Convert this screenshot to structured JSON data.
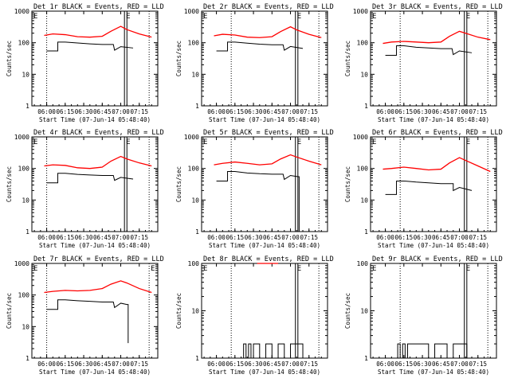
{
  "figure": {
    "start_time_label": "Start Time (07-Jun-14 05:48:40)",
    "ylabel": "Counts/sec",
    "legend_marker": "E",
    "colors": {
      "events": "#000000",
      "lld": "#ff0000",
      "axes": "#000000",
      "background": "#ffffff"
    }
  },
  "chart_data": [
    {
      "type": "line",
      "title": "Det 1r BLACK = Events, RED = LLD",
      "xlabel": "Start Time (07-Jun-14 05:48:40)",
      "ylabel": "Counts/sec",
      "yscale": "log",
      "ylim": [
        1,
        1000
      ],
      "yticks": [
        "1",
        "10",
        "100",
        "1000"
      ],
      "xlim": [
        "05:48",
        "07:30"
      ],
      "xticks": [
        "06:00",
        "06:15",
        "06:30",
        "06:45",
        "07:00",
        "07:15"
      ],
      "markers": {
        "dotted": [
          "06:00",
          "07:23"
        ],
        "solid": [
          "07:03",
          "07:05"
        ]
      },
      "series": [
        {
          "name": "LLD",
          "x": [
            "05:58",
            "06:05",
            "06:15",
            "06:25",
            "06:35",
            "06:45",
            "06:52",
            "07:00",
            "07:05",
            "07:15",
            "07:25"
          ],
          "values": [
            170,
            190,
            180,
            155,
            150,
            160,
            230,
            330,
            260,
            190,
            150
          ]
        },
        {
          "name": "Events",
          "x": [
            "06:00",
            "06:08",
            "06:09",
            "06:15",
            "06:25",
            "06:35",
            "06:45",
            "06:54",
            "06:55",
            "07:00",
            "07:10"
          ],
          "values": [
            55,
            55,
            105,
            105,
            98,
            92,
            88,
            88,
            58,
            75,
            68
          ]
        }
      ]
    },
    {
      "type": "line",
      "title": "Det 2r BLACK = Events, RED = LLD",
      "xlabel": "Start Time (07-Jun-14 05:48:40)",
      "ylabel": "Counts/sec",
      "yscale": "log",
      "ylim": [
        1,
        1000
      ],
      "yticks": [
        "1",
        "10",
        "100",
        "1000"
      ],
      "xlim": [
        "05:48",
        "07:30"
      ],
      "xticks": [
        "06:00",
        "06:15",
        "06:30",
        "06:45",
        "07:00",
        "07:15"
      ],
      "markers": {
        "dotted": [
          "06:12",
          "07:23"
        ],
        "solid": [
          "07:04",
          "07:06"
        ]
      },
      "series": [
        {
          "name": "LLD",
          "x": [
            "05:58",
            "06:05",
            "06:15",
            "06:25",
            "06:35",
            "06:45",
            "06:52",
            "07:00",
            "07:05",
            "07:15",
            "07:25"
          ],
          "values": [
            165,
            185,
            175,
            150,
            145,
            155,
            225,
            320,
            255,
            185,
            145
          ]
        },
        {
          "name": "Events",
          "x": [
            "06:00",
            "06:08",
            "06:09",
            "06:15",
            "06:25",
            "06:35",
            "06:45",
            "06:54",
            "06:55",
            "07:00",
            "07:10"
          ],
          "values": [
            55,
            55,
            105,
            105,
            97,
            90,
            86,
            86,
            58,
            76,
            66
          ]
        }
      ]
    },
    {
      "type": "line",
      "title": "Det 3r BLACK = Events, RED = LLD",
      "xlabel": "Start Time (07-Jun-14 05:48:40)",
      "ylabel": "Counts/sec",
      "yscale": "log",
      "ylim": [
        1,
        1000
      ],
      "yticks": [
        "1",
        "10",
        "100",
        "1000"
      ],
      "xlim": [
        "05:48",
        "07:30"
      ],
      "xticks": [
        "06:00",
        "06:15",
        "06:30",
        "06:45",
        "07:00",
        "07:15"
      ],
      "markers": {
        "dotted": [
          "06:12",
          "07:23"
        ],
        "solid": [
          "07:04",
          "07:06"
        ]
      },
      "series": [
        {
          "name": "LLD",
          "x": [
            "05:58",
            "06:05",
            "06:15",
            "06:25",
            "06:35",
            "06:45",
            "06:52",
            "07:00",
            "07:05",
            "07:15",
            "07:25"
          ],
          "values": [
            95,
            105,
            110,
            105,
            100,
            105,
            160,
            230,
            200,
            150,
            125
          ]
        },
        {
          "name": "Events",
          "x": [
            "06:00",
            "06:08",
            "06:09",
            "06:15",
            "06:25",
            "06:35",
            "06:45",
            "06:54",
            "06:55",
            "07:00",
            "07:10"
          ],
          "values": [
            40,
            40,
            80,
            80,
            72,
            68,
            65,
            65,
            42,
            55,
            48
          ]
        }
      ]
    },
    {
      "type": "line",
      "title": "Det 4r BLACK = Events, RED = LLD",
      "xlabel": "Start Time (07-Jun-14 05:48:40)",
      "ylabel": "Counts/sec",
      "yscale": "log",
      "ylim": [
        1,
        1000
      ],
      "yticks": [
        "1",
        "10",
        "100",
        "1000"
      ],
      "xlim": [
        "05:48",
        "07:30"
      ],
      "xticks": [
        "06:00",
        "06:15",
        "06:30",
        "06:45",
        "07:00",
        "07:15"
      ],
      "markers": {
        "dotted": [
          "06:00",
          "07:23"
        ],
        "solid": [
          "07:03",
          "07:05"
        ]
      },
      "series": [
        {
          "name": "LLD",
          "x": [
            "05:58",
            "06:05",
            "06:15",
            "06:25",
            "06:35",
            "06:45",
            "06:52",
            "07:00",
            "07:05",
            "07:15",
            "07:25"
          ],
          "values": [
            120,
            130,
            125,
            105,
            100,
            110,
            170,
            240,
            200,
            150,
            120
          ]
        },
        {
          "name": "Events",
          "x": [
            "06:00",
            "06:08",
            "06:09",
            "06:15",
            "06:25",
            "06:35",
            "06:45",
            "06:54",
            "06:55",
            "07:00",
            "07:10"
          ],
          "values": [
            35,
            35,
            70,
            70,
            65,
            62,
            60,
            60,
            42,
            52,
            46
          ]
        }
      ]
    },
    {
      "type": "line",
      "title": "Det 5r BLACK = Events, RED = LLD",
      "xlabel": "Start Time (07-Jun-14 05:48:40)",
      "ylabel": "Counts/sec",
      "yscale": "log",
      "ylim": [
        1,
        1000
      ],
      "yticks": [
        "1",
        "10",
        "100",
        "1000"
      ],
      "xlim": [
        "05:48",
        "07:30"
      ],
      "xticks": [
        "06:00",
        "06:15",
        "06:30",
        "06:45",
        "07:00",
        "07:15"
      ],
      "markers": {
        "dotted": [
          "06:12",
          "07:23"
        ],
        "solid": [
          "07:04",
          "07:06"
        ]
      },
      "series": [
        {
          "name": "LLD",
          "x": [
            "05:58",
            "06:05",
            "06:15",
            "06:25",
            "06:35",
            "06:45",
            "06:52",
            "07:00",
            "07:05",
            "07:15",
            "07:25"
          ],
          "values": [
            130,
            145,
            160,
            145,
            130,
            140,
            200,
            270,
            230,
            170,
            130
          ]
        },
        {
          "name": "Events",
          "x": [
            "06:00",
            "06:08",
            "06:09",
            "06:15",
            "06:25",
            "06:35",
            "06:45",
            "06:54",
            "06:55",
            "07:00",
            "07:06",
            "07:07"
          ],
          "values": [
            40,
            40,
            80,
            80,
            72,
            68,
            66,
            66,
            45,
            60,
            55,
            1
          ]
        }
      ]
    },
    {
      "type": "line",
      "title": "Det 6r BLACK = Events, RED = LLD",
      "xlabel": "Start Time (07-Jun-14 05:48:40)",
      "ylabel": "Counts/sec",
      "yscale": "log",
      "ylim": [
        1,
        1000
      ],
      "yticks": [
        "1",
        "10",
        "100",
        "1000"
      ],
      "xlim": [
        "05:48",
        "07:30"
      ],
      "xticks": [
        "06:00",
        "06:15",
        "06:30",
        "06:45",
        "07:00",
        "07:15"
      ],
      "markers": {
        "dotted": [
          "06:12",
          "07:23"
        ],
        "solid": [
          "07:04",
          "07:06"
        ]
      },
      "series": [
        {
          "name": "LLD",
          "x": [
            "05:58",
            "06:05",
            "06:15",
            "06:25",
            "06:35",
            "06:45",
            "06:52",
            "07:00",
            "07:05",
            "07:15",
            "07:25"
          ],
          "values": [
            95,
            100,
            110,
            100,
            90,
            95,
            150,
            220,
            180,
            120,
            80
          ]
        },
        {
          "name": "Events",
          "x": [
            "06:00",
            "06:08",
            "06:09",
            "06:15",
            "06:25",
            "06:35",
            "06:45",
            "06:54",
            "06:55",
            "07:00",
            "07:10"
          ],
          "values": [
            15,
            15,
            40,
            40,
            37,
            35,
            33,
            33,
            20,
            25,
            20
          ]
        }
      ]
    },
    {
      "type": "line",
      "title": "Det 7r BLACK = Events, RED = LLD",
      "xlabel": "Start Time (07-Jun-14 05:48:40)",
      "ylabel": "Counts/sec",
      "yscale": "log",
      "ylim": [
        1,
        1000
      ],
      "yticks": [
        "1",
        "10",
        "100",
        "1000"
      ],
      "xlim": [
        "05:48",
        "07:30"
      ],
      "xticks": [
        "06:00",
        "06:15",
        "06:30",
        "06:45",
        "07:00",
        "07:15"
      ],
      "markers": {
        "dotted": [
          "06:00",
          "07:23"
        ],
        "solid": []
      },
      "series": [
        {
          "name": "LLD",
          "x": [
            "05:58",
            "06:05",
            "06:15",
            "06:25",
            "06:35",
            "06:45",
            "06:52",
            "07:00",
            "07:05",
            "07:15",
            "07:25"
          ],
          "values": [
            120,
            130,
            140,
            135,
            140,
            160,
            220,
            280,
            240,
            160,
            120
          ]
        },
        {
          "name": "Events",
          "x": [
            "06:00",
            "06:08",
            "06:09",
            "06:15",
            "06:25",
            "06:35",
            "06:45",
            "06:54",
            "06:55",
            "07:00",
            "07:05",
            "07:06"
          ],
          "values": [
            35,
            35,
            70,
            70,
            66,
            63,
            60,
            60,
            40,
            55,
            50,
            3
          ]
        }
      ]
    },
    {
      "type": "line",
      "title": "Det 8r BLACK = Events, RED = LLD",
      "xlabel": "Start Time (07-Jun-14 05:48:40)",
      "ylabel": "Counts/sec",
      "yscale": "log",
      "ylim": [
        1,
        100
      ],
      "yticks": [
        "1",
        "10",
        "100"
      ],
      "xlim": [
        "05:48",
        "07:30"
      ],
      "xticks": [
        "06:00",
        "06:15",
        "06:30",
        "06:45",
        "07:00",
        "07:15"
      ],
      "markers": {
        "dotted": [
          "06:12",
          "07:23"
        ],
        "solid": [
          "07:04",
          "07:06"
        ]
      },
      "series": [
        {
          "name": "LLD",
          "x": [
            "06:33",
            "06:50"
          ],
          "values": [
            100,
            100
          ]
        },
        {
          "name": "Events",
          "x": [
            "06:00",
            "06:20",
            "06:22",
            "06:24",
            "06:26",
            "06:28",
            "06:30",
            "06:35",
            "06:40",
            "06:45",
            "06:50",
            "06:55",
            "07:00",
            "07:03",
            "07:06",
            "07:08",
            "07:10"
          ],
          "values": [
            1,
            1,
            2,
            1,
            2,
            1,
            2,
            1,
            2,
            1,
            2,
            1,
            2,
            2,
            2,
            2,
            1
          ]
        }
      ]
    },
    {
      "type": "line",
      "title": "Det 9r BLACK = Events, RED = LLD",
      "xlabel": "Start Time (07-Jun-14 05:48:40)",
      "ylabel": "Counts/sec",
      "yscale": "log",
      "ylim": [
        1,
        100
      ],
      "yticks": [
        "1",
        "10",
        "100"
      ],
      "xlim": [
        "05:48",
        "07:30"
      ],
      "xticks": [
        "06:00",
        "06:15",
        "06:30",
        "06:45",
        "07:00",
        "07:15"
      ],
      "markers": {
        "dotted": [
          "06:12",
          "07:23"
        ],
        "solid": [
          "07:04",
          "07:06"
        ]
      },
      "series": [
        {
          "name": "Events",
          "x": [
            "06:00",
            "06:10",
            "06:12",
            "06:14",
            "06:16",
            "06:18",
            "06:35",
            "06:40",
            "06:50",
            "06:55",
            "07:00",
            "07:02",
            "07:04",
            "07:06"
          ],
          "values": [
            1,
            2,
            1,
            2,
            1,
            2,
            1,
            2,
            1,
            2,
            2,
            2,
            2,
            1
          ]
        }
      ]
    }
  ]
}
